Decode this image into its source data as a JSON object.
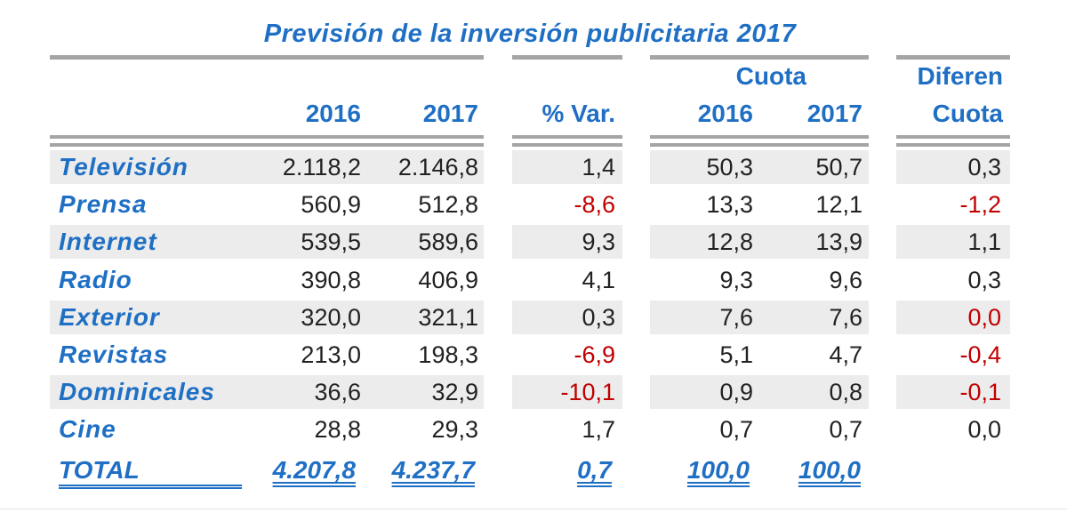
{
  "chart_data": {
    "type": "table",
    "title": "Previsión de la inversión publicitaria 2017",
    "headers": {
      "y2016": "2016",
      "y2017": "2017",
      "var": "% Var.",
      "cuota_top": "Cuota",
      "cuota2016": "2016",
      "cuota2017": "2017",
      "dif_top": "Diferen",
      "dif_bottom": "Cuota"
    },
    "rows": [
      {
        "label": "Televisión",
        "v2016": "2.118,2",
        "v2017": "2.146,8",
        "var": "1,4",
        "c2016": "50,3",
        "c2017": "50,7",
        "dif": "0,3"
      },
      {
        "label": "Prensa",
        "v2016": "560,9",
        "v2017": "512,8",
        "var": "-8,6",
        "c2016": "13,3",
        "c2017": "12,1",
        "dif": "-1,2"
      },
      {
        "label": "Internet",
        "v2016": "539,5",
        "v2017": "589,6",
        "var": "9,3",
        "c2016": "12,8",
        "c2017": "13,9",
        "dif": "1,1"
      },
      {
        "label": "Radio",
        "v2016": "390,8",
        "v2017": "406,9",
        "var": "4,1",
        "c2016": "9,3",
        "c2017": "9,6",
        "dif": "0,3"
      },
      {
        "label": "Exterior",
        "v2016": "320,0",
        "v2017": "321,1",
        "var": "0,3",
        "c2016": "7,6",
        "c2017": "7,6",
        "dif": "0,0"
      },
      {
        "label": "Revistas",
        "v2016": "213,0",
        "v2017": "198,3",
        "var": "-6,9",
        "c2016": "5,1",
        "c2017": "4,7",
        "dif": "-0,4"
      },
      {
        "label": "Dominicales",
        "v2016": "36,6",
        "v2017": "32,9",
        "var": "-10,1",
        "c2016": "0,9",
        "c2017": "0,8",
        "dif": "-0,1"
      },
      {
        "label": "Cine",
        "v2016": "28,8",
        "v2017": "29,3",
        "var": "1,7",
        "c2016": "0,7",
        "c2017": "0,7",
        "dif": "0,0"
      }
    ],
    "total": {
      "label": "TOTAL",
      "v2016": "4.207,8",
      "v2017": "4.237,7",
      "var": "0,7",
      "c2016": "100,0",
      "c2017": "100,0"
    },
    "negative_cells": [
      {
        "row": 1,
        "col": "var"
      },
      {
        "row": 1,
        "col": "dif"
      },
      {
        "row": 4,
        "col": "dif"
      },
      {
        "row": 5,
        "col": "var"
      },
      {
        "row": 5,
        "col": "dif"
      },
      {
        "row": 6,
        "col": "var"
      },
      {
        "row": 6,
        "col": "dif"
      }
    ],
    "colors": {
      "accent": "#1f6fc4",
      "negative": "#c00000",
      "text": "#222222",
      "rule": "#a5a5a5",
      "stripe": "#ececec"
    }
  }
}
